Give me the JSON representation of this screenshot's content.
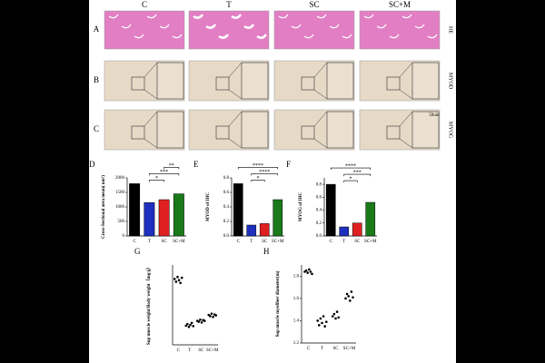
{
  "figure": {
    "columns": [
      "C",
      "T",
      "SC",
      "SC+M"
    ],
    "rows": [
      "A",
      "B",
      "C"
    ],
    "stains": [
      "HE",
      "MYOD",
      "MYOG"
    ],
    "scale_bar": "50um"
  },
  "chart_data": [
    {
      "type": "bar",
      "panel": "D",
      "y_label": "Cross-Sectional area mean( um²)",
      "categories": [
        "C",
        "T",
        "SC",
        "SC+M"
      ],
      "values": [
        1800,
        1150,
        1250,
        1450
      ],
      "colors": [
        "#000000",
        "#1f2fbf",
        "#e02020",
        "#1a7a1a"
      ],
      "ylim": [
        0,
        2000
      ],
      "yticks": [
        0,
        500,
        1000,
        1500,
        2000
      ],
      "comparisons": [
        {
          "label": "*",
          "pair": [
            1,
            2
          ]
        },
        {
          "label": "***",
          "pair": [
            1,
            3
          ]
        },
        {
          "label": "**",
          "pair": [
            2,
            3
          ]
        }
      ]
    },
    {
      "type": "bar",
      "panel": "E",
      "y_label": "MYOD of IHC",
      "categories": [
        "C",
        "T",
        "SC",
        "SC+M"
      ],
      "values": [
        0.72,
        0.15,
        0.17,
        0.5
      ],
      "colors": [
        "#000000",
        "#1f2fbf",
        "#e02020",
        "#1a7a1a"
      ],
      "ylim": [
        0,
        0.8
      ],
      "yticks": [
        {
          "value": 0,
          "label": "0.0"
        },
        0.2,
        0.4,
        0.6,
        0.8
      ],
      "comparisons": [
        {
          "label": "*",
          "pair": [
            1,
            2
          ]
        },
        {
          "label": "****",
          "pair": [
            1,
            3
          ]
        },
        {
          "label": "****",
          "pair": [
            0,
            3
          ]
        }
      ]
    },
    {
      "type": "bar",
      "panel": "F",
      "y_label": "MYOG of IHC",
      "categories": [
        "C",
        "T",
        "SC",
        "SC+M"
      ],
      "values": [
        0.8,
        0.14,
        0.2,
        0.52
      ],
      "colors": [
        "#000000",
        "#1f2fbf",
        "#e02020",
        "#1a7a1a"
      ],
      "ylim": [
        0,
        0.9
      ],
      "yticks": [
        {
          "value": 0,
          "label": "0.0"
        },
        0.2,
        0.4,
        0.6,
        0.8
      ],
      "comparisons": [
        {
          "label": "*",
          "pair": [
            1,
            2
          ]
        },
        {
          "label": "***",
          "pair": [
            1,
            3
          ]
        },
        {
          "label": "****",
          "pair": [
            0,
            3
          ]
        }
      ]
    },
    {
      "type": "dot",
      "panel": "G",
      "y_label": "Sup muscle weight/Body weight（mg/g）",
      "categories": [
        "C",
        "T",
        "SC",
        "SC+M"
      ],
      "values": [
        [
          2.45,
          2.38,
          2.5,
          2.42,
          2.35,
          2.48
        ],
        [
          1.28,
          1.32,
          1.25,
          1.3,
          1.35,
          1.27
        ],
        [
          1.4,
          1.38,
          1.43,
          1.36,
          1.42,
          1.4
        ],
        [
          1.55,
          1.52,
          1.58,
          1.5,
          1.56,
          1.54
        ]
      ],
      "color": "#000000",
      "ylim": [
        0.8,
        2.8
      ]
    },
    {
      "type": "dot",
      "panel": "H",
      "y_label": "Sup muscle myofiber diameter(m)",
      "categories": [
        "C",
        "T",
        "SC",
        "SC+M"
      ],
      "values": [
        [
          1.84,
          1.85,
          1.83,
          1.86,
          1.84,
          1.82
        ],
        [
          1.4,
          1.36,
          1.42,
          1.38,
          1.44,
          1.35,
          1.39
        ],
        [
          1.44,
          1.46,
          1.42,
          1.48,
          1.43
        ],
        [
          1.6,
          1.64,
          1.62,
          1.58,
          1.66,
          1.61
        ]
      ],
      "color": "#000000",
      "ylim": [
        1.2,
        1.9
      ],
      "yticks": [
        1.2,
        1.4,
        1.6,
        1.8
      ]
    }
  ]
}
